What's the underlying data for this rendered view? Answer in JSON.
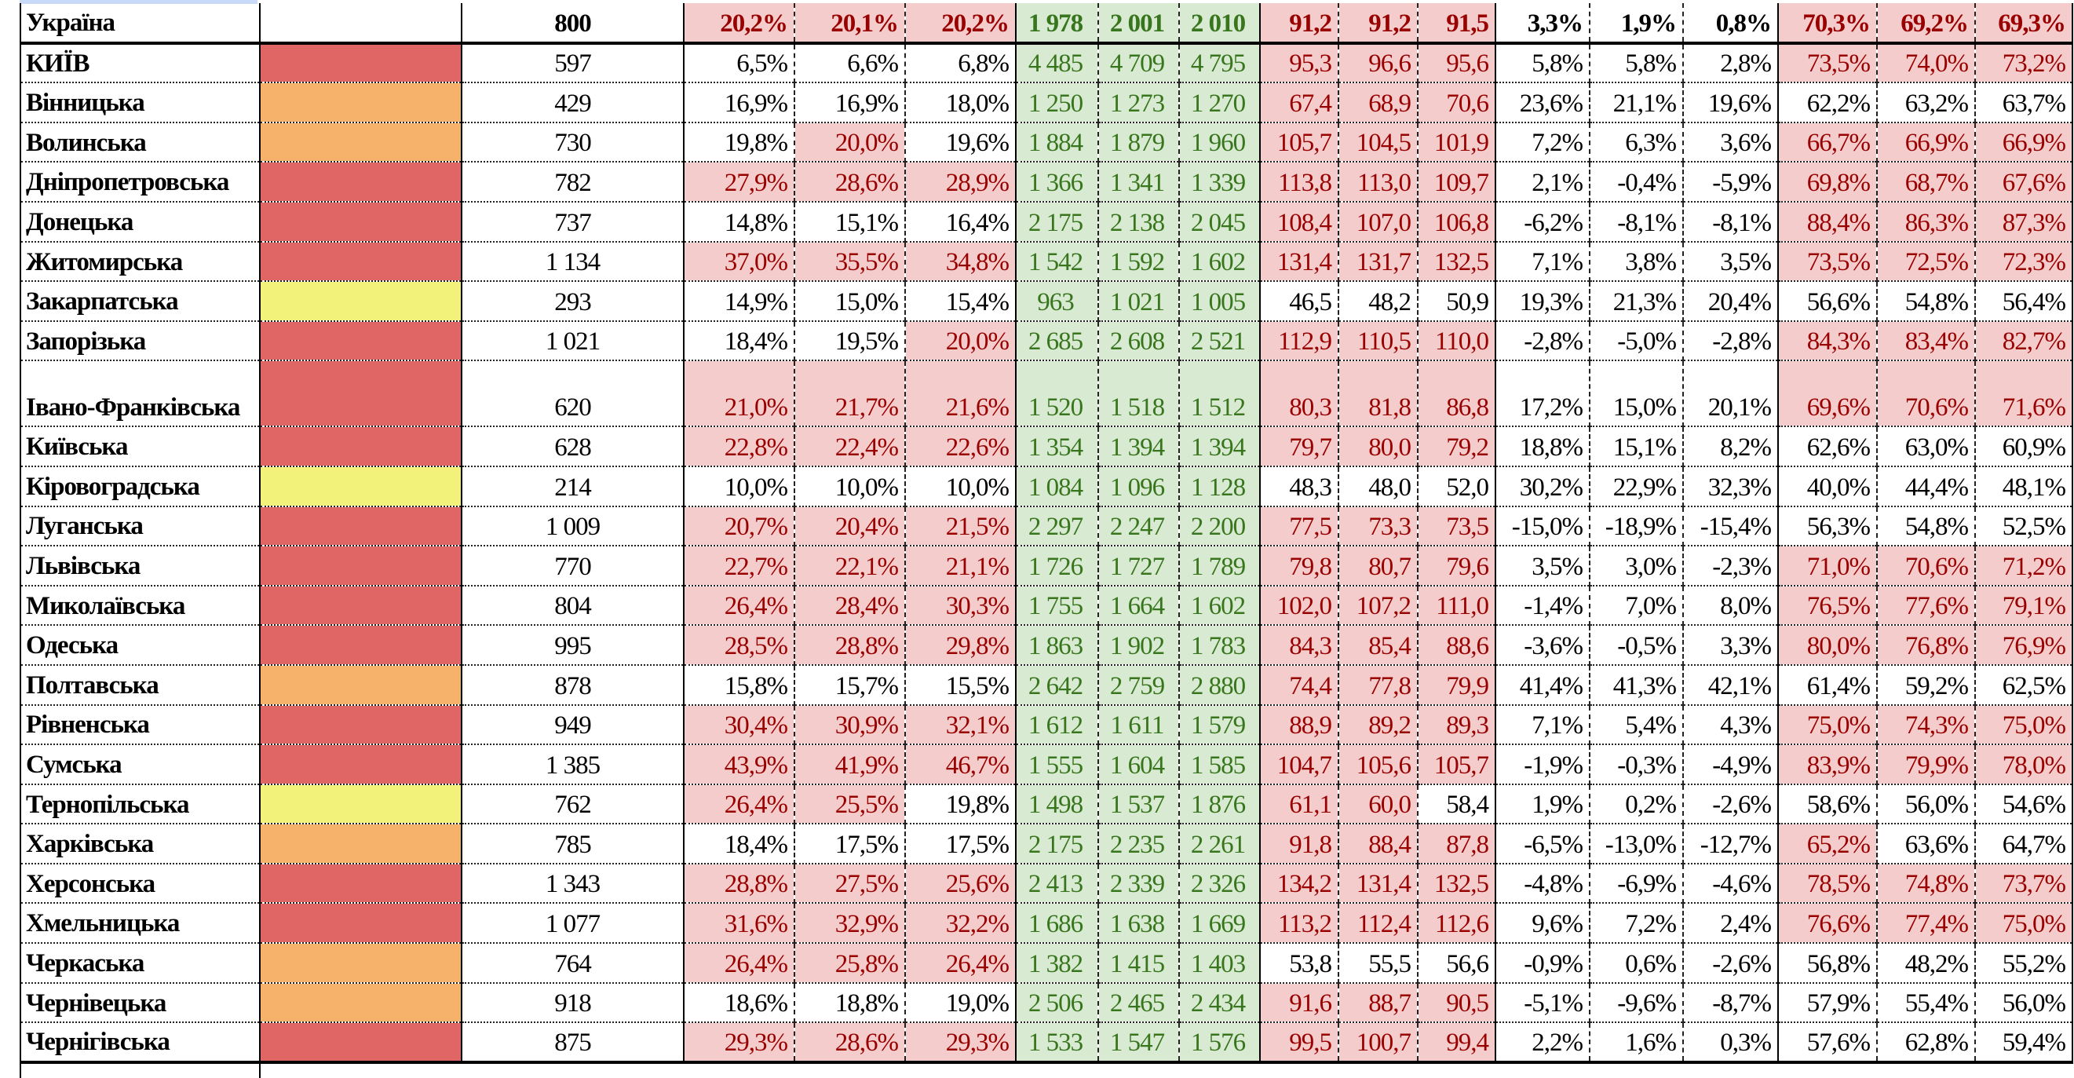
{
  "colors": {
    "red": "#e06666",
    "orange": "#f6b26b",
    "yellow": "#f2f27a",
    "none": "#ffffff",
    "highlight_bg": "#f4cccc",
    "highlight_text": "#990000",
    "green_bg": "#d9ead3",
    "green_text": "#38761d"
  },
  "total": {
    "name": "Україна",
    "swatch": "none",
    "num": "800",
    "g1": [
      "20,2%",
      "20,1%",
      "20,2%"
    ],
    "g2": [
      "1 978",
      "2 001",
      "2 010"
    ],
    "g3": [
      "91,2",
      "91,2",
      "91,5"
    ],
    "g4": [
      "3,3%",
      "1,9%",
      "0,8%"
    ],
    "g5": [
      "70,3%",
      "69,2%",
      "69,3%"
    ]
  },
  "rows": [
    {
      "name": "КИЇВ",
      "swatch": "red",
      "num": "597",
      "g1": [
        "6,5%",
        "6,6%",
        "6,8%"
      ],
      "g2": [
        "4 485",
        "4 709",
        "4 795"
      ],
      "g3": [
        "95,3",
        "96,6",
        "95,6"
      ],
      "g4": [
        "5,8%",
        "5,8%",
        "2,8%"
      ],
      "g5": [
        "73,5%",
        "74,0%",
        "73,2%"
      ]
    },
    {
      "name": "Вінницька",
      "swatch": "orange",
      "num": "429",
      "g1": [
        "16,9%",
        "16,9%",
        "18,0%"
      ],
      "g2": [
        "1 250",
        "1 273",
        "1 270"
      ],
      "g3": [
        "67,4",
        "68,9",
        "70,6"
      ],
      "g4": [
        "23,6%",
        "21,1%",
        "19,6%"
      ],
      "g5": [
        "62,2%",
        "63,2%",
        "63,7%"
      ]
    },
    {
      "name": "Волинська",
      "swatch": "orange",
      "num": "730",
      "g1": [
        "19,8%",
        "20,0%",
        "19,6%"
      ],
      "g2": [
        "1 884",
        "1 879",
        "1 960"
      ],
      "g3": [
        "105,7",
        "104,5",
        "101,9"
      ],
      "g4": [
        "7,2%",
        "6,3%",
        "3,6%"
      ],
      "g5": [
        "66,7%",
        "66,9%",
        "66,9%"
      ]
    },
    {
      "name": "Дніпропетровська",
      "swatch": "red",
      "num": "782",
      "g1": [
        "27,9%",
        "28,6%",
        "28,9%"
      ],
      "g2": [
        "1 366",
        "1 341",
        "1 339"
      ],
      "g3": [
        "113,8",
        "113,0",
        "109,7"
      ],
      "g4": [
        "2,1%",
        "-0,4%",
        "-5,9%"
      ],
      "g5": [
        "69,8%",
        "68,7%",
        "67,6%"
      ]
    },
    {
      "name": "Донецька",
      "swatch": "red",
      "num": "737",
      "g1": [
        "14,8%",
        "15,1%",
        "16,4%"
      ],
      "g2": [
        "2 175",
        "2 138",
        "2 045"
      ],
      "g3": [
        "108,4",
        "107,0",
        "106,8"
      ],
      "g4": [
        "-6,2%",
        "-8,1%",
        "-8,1%"
      ],
      "g5": [
        "88,4%",
        "86,3%",
        "87,3%"
      ]
    },
    {
      "name": "Житомирська",
      "swatch": "red",
      "num": "1 134",
      "g1": [
        "37,0%",
        "35,5%",
        "34,8%"
      ],
      "g2": [
        "1 542",
        "1 592",
        "1 602"
      ],
      "g3": [
        "131,4",
        "131,7",
        "132,5"
      ],
      "g4": [
        "7,1%",
        "3,8%",
        "3,5%"
      ],
      "g5": [
        "73,5%",
        "72,5%",
        "72,3%"
      ]
    },
    {
      "name": "Закарпатська",
      "swatch": "yellow",
      "num": "293",
      "g1": [
        "14,9%",
        "15,0%",
        "15,4%"
      ],
      "g2": [
        "963",
        "1 021",
        "1 005"
      ],
      "g3": [
        "46,5",
        "48,2",
        "50,9"
      ],
      "g4": [
        "19,3%",
        "21,3%",
        "20,4%"
      ],
      "g5": [
        "56,6%",
        "54,8%",
        "56,4%"
      ]
    },
    {
      "name": "Запорізька",
      "swatch": "red",
      "num": "1 021",
      "g1": [
        "18,4%",
        "19,5%",
        "20,0%"
      ],
      "g2": [
        "2 685",
        "2 608",
        "2 521"
      ],
      "g3": [
        "112,9",
        "110,5",
        "110,0"
      ],
      "g4": [
        "-2,8%",
        "-5,0%",
        "-2,8%"
      ],
      "g5": [
        "84,3%",
        "83,4%",
        "82,7%"
      ]
    },
    {
      "name": "Івано-Франківська",
      "swatch": "red",
      "num": "620",
      "tall": true,
      "g1": [
        "21,0%",
        "21,7%",
        "21,6%"
      ],
      "g2": [
        "1 520",
        "1 518",
        "1 512"
      ],
      "g3": [
        "80,3",
        "81,8",
        "86,8"
      ],
      "g4": [
        "17,2%",
        "15,0%",
        "20,1%"
      ],
      "g5": [
        "69,6%",
        "70,6%",
        "71,6%"
      ]
    },
    {
      "name": "Київська",
      "swatch": "red",
      "num": "628",
      "g1": [
        "22,8%",
        "22,4%",
        "22,6%"
      ],
      "g2": [
        "1 354",
        "1 394",
        "1 394"
      ],
      "g3": [
        "79,7",
        "80,0",
        "79,2"
      ],
      "g4": [
        "18,8%",
        "15,1%",
        "8,2%"
      ],
      "g5": [
        "62,6%",
        "63,0%",
        "60,9%"
      ]
    },
    {
      "name": "Кіровоградська",
      "swatch": "yellow",
      "num": "214",
      "g1": [
        "10,0%",
        "10,0%",
        "10,0%"
      ],
      "g2": [
        "1 084",
        "1 096",
        "1 128"
      ],
      "g3": [
        "48,3",
        "48,0",
        "52,0"
      ],
      "g4": [
        "30,2%",
        "22,9%",
        "32,3%"
      ],
      "g5": [
        "40,0%",
        "44,4%",
        "48,1%"
      ]
    },
    {
      "name": "Луганська",
      "swatch": "red",
      "num": "1 009",
      "g1": [
        "20,7%",
        "20,4%",
        "21,5%"
      ],
      "g2": [
        "2 297",
        "2 247",
        "2 200"
      ],
      "g3": [
        "77,5",
        "73,3",
        "73,5"
      ],
      "g4": [
        "-15,0%",
        "-18,9%",
        "-15,4%"
      ],
      "g5": [
        "56,3%",
        "54,8%",
        "52,5%"
      ]
    },
    {
      "name": "Львівська",
      "swatch": "red",
      "num": "770",
      "g1": [
        "22,7%",
        "22,1%",
        "21,1%"
      ],
      "g2": [
        "1 726",
        "1 727",
        "1 789"
      ],
      "g3": [
        "79,8",
        "80,7",
        "79,6"
      ],
      "g4": [
        "3,5%",
        "3,0%",
        "-2,3%"
      ],
      "g5": [
        "71,0%",
        "70,6%",
        "71,2%"
      ]
    },
    {
      "name": "Миколаївська",
      "swatch": "red",
      "num": "804",
      "g1": [
        "26,4%",
        "28,4%",
        "30,3%"
      ],
      "g2": [
        "1 755",
        "1 664",
        "1 602"
      ],
      "g3": [
        "102,0",
        "107,2",
        "111,0"
      ],
      "g4": [
        "-1,4%",
        "7,0%",
        "8,0%"
      ],
      "g5": [
        "76,5%",
        "77,6%",
        "79,1%"
      ]
    },
    {
      "name": "Одеська",
      "swatch": "red",
      "num": "995",
      "g1": [
        "28,5%",
        "28,8%",
        "29,8%"
      ],
      "g2": [
        "1 863",
        "1 902",
        "1 783"
      ],
      "g3": [
        "84,3",
        "85,4",
        "88,6"
      ],
      "g4": [
        "-3,6%",
        "-0,5%",
        "3,3%"
      ],
      "g5": [
        "80,0%",
        "76,8%",
        "76,9%"
      ]
    },
    {
      "name": "Полтавська",
      "swatch": "orange",
      "num": "878",
      "g1": [
        "15,8%",
        "15,7%",
        "15,5%"
      ],
      "g2": [
        "2 642",
        "2 759",
        "2 880"
      ],
      "g3": [
        "74,4",
        "77,8",
        "79,9"
      ],
      "g4": [
        "41,4%",
        "41,3%",
        "42,1%"
      ],
      "g5": [
        "61,4%",
        "59,2%",
        "62,5%"
      ]
    },
    {
      "name": "Рівненська",
      "swatch": "red",
      "num": "949",
      "g1": [
        "30,4%",
        "30,9%",
        "32,1%"
      ],
      "g2": [
        "1 612",
        "1 611",
        "1 579"
      ],
      "g3": [
        "88,9",
        "89,2",
        "89,3"
      ],
      "g4": [
        "7,1%",
        "5,4%",
        "4,3%"
      ],
      "g5": [
        "75,0%",
        "74,3%",
        "75,0%"
      ]
    },
    {
      "name": "Сумська",
      "swatch": "red",
      "num": "1 385",
      "g1": [
        "43,9%",
        "41,9%",
        "46,7%"
      ],
      "g2": [
        "1 555",
        "1 604",
        "1 585"
      ],
      "g3": [
        "104,7",
        "105,6",
        "105,7"
      ],
      "g4": [
        "-1,9%",
        "-0,3%",
        "-4,9%"
      ],
      "g5": [
        "83,9%",
        "79,9%",
        "78,0%"
      ]
    },
    {
      "name": "Тернопільська",
      "swatch": "yellow",
      "num": "762",
      "g1": [
        "26,4%",
        "25,5%",
        "19,8%"
      ],
      "g2": [
        "1 498",
        "1 537",
        "1 876"
      ],
      "g3": [
        "61,1",
        "60,0",
        "58,4"
      ],
      "g4": [
        "1,9%",
        "0,2%",
        "-2,6%"
      ],
      "g5": [
        "58,6%",
        "56,0%",
        "54,6%"
      ]
    },
    {
      "name": "Харківська",
      "swatch": "orange",
      "num": "785",
      "g1": [
        "18,4%",
        "17,5%",
        "17,5%"
      ],
      "g2": [
        "2 175",
        "2 235",
        "2 261"
      ],
      "g3": [
        "91,8",
        "88,4",
        "87,8"
      ],
      "g4": [
        "-6,5%",
        "-13,0%",
        "-12,7%"
      ],
      "g5": [
        "65,2%",
        "63,6%",
        "64,7%"
      ]
    },
    {
      "name": "Херсонська",
      "swatch": "red",
      "num": "1 343",
      "g1": [
        "28,8%",
        "27,5%",
        "25,6%"
      ],
      "g2": [
        "2 413",
        "2 339",
        "2 326"
      ],
      "g3": [
        "134,2",
        "131,4",
        "132,5"
      ],
      "g4": [
        "-4,8%",
        "-6,9%",
        "-4,6%"
      ],
      "g5": [
        "78,5%",
        "74,8%",
        "73,7%"
      ]
    },
    {
      "name": "Хмельницька",
      "swatch": "red",
      "num": "1 077",
      "g1": [
        "31,6%",
        "32,9%",
        "32,2%"
      ],
      "g2": [
        "1 686",
        "1 638",
        "1 669"
      ],
      "g3": [
        "113,2",
        "112,4",
        "112,6"
      ],
      "g4": [
        "9,6%",
        "7,2%",
        "2,4%"
      ],
      "g5": [
        "76,6%",
        "77,4%",
        "75,0%"
      ]
    },
    {
      "name": "Черкаська",
      "swatch": "orange",
      "num": "764",
      "g1": [
        "26,4%",
        "25,8%",
        "26,4%"
      ],
      "g2": [
        "1 382",
        "1 415",
        "1 403"
      ],
      "g3": [
        "53,8",
        "55,5",
        "56,6"
      ],
      "g4": [
        "-0,9%",
        "0,6%",
        "-2,6%"
      ],
      "g5": [
        "56,8%",
        "48,2%",
        "55,2%"
      ]
    },
    {
      "name": "Чернівецька",
      "swatch": "orange",
      "num": "918",
      "g1": [
        "18,6%",
        "18,8%",
        "19,0%"
      ],
      "g2": [
        "2 506",
        "2 465",
        "2 434"
      ],
      "g3": [
        "91,6",
        "88,7",
        "90,5"
      ],
      "g4": [
        "-5,1%",
        "-9,6%",
        "-8,7%"
      ],
      "g5": [
        "57,9%",
        "55,4%",
        "56,0%"
      ]
    },
    {
      "name": "Чернігівська",
      "swatch": "red",
      "num": "875",
      "g1": [
        "29,3%",
        "28,6%",
        "29,3%"
      ],
      "g2": [
        "1 533",
        "1 547",
        "1 576"
      ],
      "g3": [
        "99,5",
        "100,7",
        "99,4"
      ],
      "g4": [
        "2,2%",
        "1,6%",
        "0,3%"
      ],
      "g5": [
        "57,6%",
        "62,8%",
        "59,4%"
      ]
    }
  ]
}
